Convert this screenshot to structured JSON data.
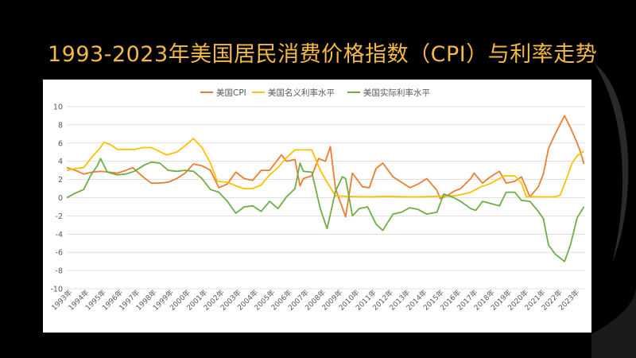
{
  "slide": {
    "title": "1993-2023年美国居民消费价格指数（CPI）与利率走势"
  },
  "colors": {
    "background": "#000000",
    "title": "#f4b942",
    "cpi": "#ed7d31",
    "nominal_rate": "#ffc000",
    "real_rate": "#70ad47",
    "grid": "#d9d9d9",
    "axis_text": "#595959"
  },
  "chart_data": {
    "type": "line",
    "title": "",
    "xlabel": "",
    "ylabel": "",
    "ylim": [
      -10,
      10
    ],
    "xlim": [
      1993.0,
      2023.67
    ],
    "grid": true,
    "legend_position": "top",
    "y_ticks": [
      "10",
      "8",
      "6",
      "4",
      "2",
      "0",
      "-2",
      "-4",
      "-6",
      "-8",
      "-10"
    ],
    "x_ticks": [
      "1993年",
      "1994年",
      "1995年",
      "1996年",
      "1997年",
      "1998年",
      "1999年",
      "2000年",
      "2001年",
      "2002年",
      "2003年",
      "2004年",
      "2005年",
      "2006年",
      "2007年",
      "2008年",
      "2009年",
      "2010年",
      "2011年",
      "2012年",
      "2013年",
      "2014年",
      "2015年",
      "2016年",
      "2017年",
      "2018年",
      "2019年",
      "2020年",
      "2021年",
      "2022年",
      "2023年"
    ],
    "series": [
      {
        "name": "美国CPI",
        "color": "#ed7d31",
        "points": [
          [
            1993.0,
            3.3
          ],
          [
            1993.5,
            3.0
          ],
          [
            1994.0,
            2.6
          ],
          [
            1994.5,
            2.8
          ],
          [
            1995.0,
            2.9
          ],
          [
            1995.5,
            2.8
          ],
          [
            1996.0,
            2.7
          ],
          [
            1996.5,
            3.0
          ],
          [
            1996.9,
            3.3
          ],
          [
            1997.5,
            2.3
          ],
          [
            1998.0,
            1.6
          ],
          [
            1998.5,
            1.6
          ],
          [
            1999.0,
            1.7
          ],
          [
            1999.5,
            2.1
          ],
          [
            2000.0,
            2.7
          ],
          [
            2000.5,
            3.7
          ],
          [
            2001.0,
            3.5
          ],
          [
            2001.5,
            3.0
          ],
          [
            2002.0,
            1.1
          ],
          [
            2002.5,
            1.5
          ],
          [
            2003.0,
            2.8
          ],
          [
            2003.5,
            2.1
          ],
          [
            2004.0,
            1.9
          ],
          [
            2004.5,
            3.0
          ],
          [
            2005.0,
            3.0
          ],
          [
            2005.7,
            4.7
          ],
          [
            2006.0,
            4.0
          ],
          [
            2006.5,
            4.2
          ],
          [
            2006.8,
            1.3
          ],
          [
            2007.0,
            2.1
          ],
          [
            2007.5,
            2.4
          ],
          [
            2007.9,
            4.3
          ],
          [
            2008.3,
            4.0
          ],
          [
            2008.6,
            5.6
          ],
          [
            2008.9,
            1.0
          ],
          [
            2009.5,
            -2.1
          ],
          [
            2009.9,
            2.7
          ],
          [
            2010.5,
            1.2
          ],
          [
            2010.9,
            1.1
          ],
          [
            2011.3,
            3.2
          ],
          [
            2011.7,
            3.8
          ],
          [
            2012.3,
            2.3
          ],
          [
            2012.8,
            1.7
          ],
          [
            2013.3,
            1.1
          ],
          [
            2013.8,
            1.5
          ],
          [
            2014.3,
            2.1
          ],
          [
            2014.9,
            0.8
          ],
          [
            2015.1,
            -0.1
          ],
          [
            2015.5,
            0.2
          ],
          [
            2015.9,
            0.7
          ],
          [
            2016.3,
            1.0
          ],
          [
            2016.9,
            2.1
          ],
          [
            2017.1,
            2.7
          ],
          [
            2017.6,
            1.6
          ],
          [
            2018.0,
            2.2
          ],
          [
            2018.6,
            2.9
          ],
          [
            2019.0,
            1.6
          ],
          [
            2019.5,
            1.8
          ],
          [
            2019.9,
            2.3
          ],
          [
            2020.4,
            0.1
          ],
          [
            2020.9,
            1.2
          ],
          [
            2021.2,
            2.6
          ],
          [
            2021.5,
            5.4
          ],
          [
            2021.9,
            7.0
          ],
          [
            2022.45,
            9.0
          ],
          [
            2022.8,
            7.7
          ],
          [
            2023.2,
            6.0
          ],
          [
            2023.4,
            5.0
          ],
          [
            2023.6,
            3.7
          ]
        ]
      },
      {
        "name": "美国名义利率水平",
        "color": "#ffc000",
        "points": [
          [
            1993.0,
            3.0
          ],
          [
            1993.5,
            3.2
          ],
          [
            1994.0,
            3.3
          ],
          [
            1994.5,
            4.5
          ],
          [
            1995.0,
            5.5
          ],
          [
            1995.2,
            6.1
          ],
          [
            1995.6,
            5.8
          ],
          [
            1996.0,
            5.3
          ],
          [
            1996.5,
            5.3
          ],
          [
            1997.0,
            5.3
          ],
          [
            1997.5,
            5.5
          ],
          [
            1998.0,
            5.5
          ],
          [
            1998.9,
            4.7
          ],
          [
            1999.5,
            5.0
          ],
          [
            2000.0,
            5.7
          ],
          [
            2000.5,
            6.5
          ],
          [
            2001.0,
            5.5
          ],
          [
            2001.5,
            3.8
          ],
          [
            2001.9,
            1.8
          ],
          [
            2002.5,
            1.7
          ],
          [
            2003.0,
            1.3
          ],
          [
            2003.5,
            1.0
          ],
          [
            2004.0,
            1.0
          ],
          [
            2004.5,
            1.4
          ],
          [
            2005.0,
            2.5
          ],
          [
            2005.5,
            3.3
          ],
          [
            2006.0,
            4.4
          ],
          [
            2006.5,
            5.25
          ],
          [
            2007.0,
            5.25
          ],
          [
            2007.5,
            5.25
          ],
          [
            2008.0,
            3.0
          ],
          [
            2008.3,
            2.0
          ],
          [
            2008.9,
            0.2
          ],
          [
            2009.5,
            0.15
          ],
          [
            2010.0,
            0.12
          ],
          [
            2011.0,
            0.1
          ],
          [
            2012.0,
            0.15
          ],
          [
            2013.0,
            0.1
          ],
          [
            2014.0,
            0.1
          ],
          [
            2015.9,
            0.2
          ],
          [
            2016.5,
            0.4
          ],
          [
            2016.9,
            0.6
          ],
          [
            2017.5,
            1.2
          ],
          [
            2018.0,
            1.5
          ],
          [
            2018.5,
            2.0
          ],
          [
            2018.9,
            2.4
          ],
          [
            2019.5,
            2.4
          ],
          [
            2019.9,
            1.6
          ],
          [
            2020.2,
            0.1
          ],
          [
            2021.0,
            0.1
          ],
          [
            2021.9,
            0.1
          ],
          [
            2022.2,
            0.3
          ],
          [
            2022.5,
            1.7
          ],
          [
            2022.9,
            3.8
          ],
          [
            2023.2,
            4.6
          ],
          [
            2023.6,
            5.1
          ]
        ]
      },
      {
        "name": "美国实际利率水平",
        "color": "#70ad47",
        "points": [
          [
            1993.0,
            0.0
          ],
          [
            1993.5,
            0.5
          ],
          [
            1994.0,
            0.9
          ],
          [
            1994.4,
            2.4
          ],
          [
            1994.8,
            3.5
          ],
          [
            1995.0,
            4.3
          ],
          [
            1995.4,
            2.8
          ],
          [
            1996.0,
            2.5
          ],
          [
            1996.5,
            2.6
          ],
          [
            1997.0,
            2.9
          ],
          [
            1997.6,
            3.6
          ],
          [
            1998.0,
            3.9
          ],
          [
            1998.5,
            3.8
          ],
          [
            1999.0,
            3.0
          ],
          [
            1999.5,
            2.9
          ],
          [
            2000.0,
            3.0
          ],
          [
            2000.5,
            2.9
          ],
          [
            2001.0,
            2.1
          ],
          [
            2001.5,
            0.9
          ],
          [
            2002.0,
            0.6
          ],
          [
            2002.5,
            -0.4
          ],
          [
            2003.0,
            -1.7
          ],
          [
            2003.5,
            -1.0
          ],
          [
            2004.0,
            -0.9
          ],
          [
            2004.5,
            -1.5
          ],
          [
            2005.0,
            -0.4
          ],
          [
            2005.5,
            -1.2
          ],
          [
            2006.0,
            0.1
          ],
          [
            2006.5,
            1.0
          ],
          [
            2006.8,
            3.8
          ],
          [
            2007.0,
            2.9
          ],
          [
            2007.5,
            2.8
          ],
          [
            2008.0,
            -1.2
          ],
          [
            2008.4,
            -3.4
          ],
          [
            2008.9,
            0.7
          ],
          [
            2009.3,
            2.3
          ],
          [
            2009.5,
            2.1
          ],
          [
            2009.9,
            -2.0
          ],
          [
            2010.3,
            -1.2
          ],
          [
            2010.8,
            -1.0
          ],
          [
            2011.3,
            -2.9
          ],
          [
            2011.7,
            -3.6
          ],
          [
            2012.3,
            -1.8
          ],
          [
            2012.8,
            -1.6
          ],
          [
            2013.3,
            -1.1
          ],
          [
            2013.8,
            -1.3
          ],
          [
            2014.3,
            -1.8
          ],
          [
            2014.9,
            -1.6
          ],
          [
            2015.3,
            0.4
          ],
          [
            2015.9,
            0.0
          ],
          [
            2016.3,
            -0.4
          ],
          [
            2016.9,
            -1.2
          ],
          [
            2017.2,
            -1.4
          ],
          [
            2017.6,
            -0.4
          ],
          [
            2018.0,
            -0.6
          ],
          [
            2018.6,
            -0.9
          ],
          [
            2019.0,
            0.6
          ],
          [
            2019.5,
            0.6
          ],
          [
            2019.9,
            -0.3
          ],
          [
            2020.4,
            -0.4
          ],
          [
            2020.9,
            -1.5
          ],
          [
            2021.2,
            -2.3
          ],
          [
            2021.5,
            -5.2
          ],
          [
            2021.9,
            -6.2
          ],
          [
            2022.45,
            -7.0
          ],
          [
            2022.8,
            -5.2
          ],
          [
            2023.2,
            -2.2
          ],
          [
            2023.6,
            -1.0
          ]
        ]
      }
    ]
  }
}
